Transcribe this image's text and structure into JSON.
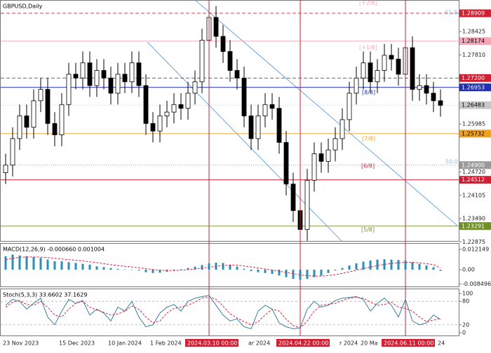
{
  "chart_data": [
    {
      "type": "candlestick",
      "title": "GBPUSD,Daily",
      "categories": [
        "23 Nov 2023",
        null,
        null,
        null,
        null,
        null,
        null,
        null,
        "15 Dec 2023",
        null,
        null,
        null,
        null,
        null,
        null,
        "10 Jan 2024",
        null,
        null,
        null,
        null,
        null,
        "1 Feb 2024",
        null,
        null,
        null,
        null,
        null,
        null,
        null,
        "2024.03.10 00:00",
        null,
        null,
        null,
        null,
        null,
        "ar 2024",
        null,
        null,
        null,
        null,
        null,
        null,
        "2024.04.22 00:00",
        null,
        null,
        null,
        null,
        null,
        "r 2024",
        null,
        null,
        "20 Ma",
        null,
        null,
        null,
        null,
        null,
        "2024.06.11 00:00",
        null,
        null,
        null,
        null,
        "24"
      ],
      "open": [
        1.247,
        1.249,
        1.256,
        1.262,
        1.259,
        1.266,
        1.269,
        1.26,
        1.257,
        1.265,
        1.273,
        1.272,
        1.276,
        1.27,
        1.274,
        1.272,
        1.268,
        1.273,
        1.271,
        1.276,
        1.27,
        1.26,
        1.258,
        1.262,
        1.263,
        1.265,
        1.264,
        1.268,
        1.271,
        1.282,
        1.288,
        1.283,
        1.279,
        1.274,
        1.272,
        1.262,
        1.256,
        1.262,
        1.265,
        1.264,
        1.255,
        1.244,
        1.237,
        1.232,
        1.245,
        1.252,
        1.25,
        1.253,
        1.256,
        1.261,
        1.268,
        1.272,
        1.276,
        1.271,
        1.274,
        1.278,
        1.277,
        1.273,
        1.28,
        1.269,
        1.27,
        1.268,
        1.266
      ],
      "high": [
        1.252,
        1.259,
        1.265,
        1.265,
        1.269,
        1.272,
        1.272,
        1.263,
        1.268,
        1.276,
        1.276,
        1.279,
        1.279,
        1.277,
        1.277,
        1.275,
        1.276,
        1.276,
        1.279,
        1.279,
        1.273,
        1.263,
        1.265,
        1.266,
        1.268,
        1.268,
        1.271,
        1.274,
        1.285,
        1.291,
        1.291,
        1.286,
        1.282,
        1.277,
        1.275,
        1.265,
        1.265,
        1.268,
        1.268,
        1.267,
        1.258,
        1.247,
        1.24,
        1.248,
        1.255,
        1.255,
        1.256,
        1.259,
        1.264,
        1.271,
        1.275,
        1.279,
        1.279,
        1.277,
        1.281,
        1.281,
        1.28,
        1.283,
        1.283,
        1.273,
        1.273,
        1.271,
        1.269
      ],
      "low": [
        1.244,
        1.246,
        1.253,
        1.256,
        1.256,
        1.263,
        1.257,
        1.254,
        1.254,
        1.262,
        1.269,
        1.269,
        1.267,
        1.267,
        1.269,
        1.265,
        1.265,
        1.268,
        1.268,
        1.267,
        1.257,
        1.255,
        1.255,
        1.259,
        1.26,
        1.261,
        1.261,
        1.265,
        1.268,
        1.279,
        1.28,
        1.276,
        1.271,
        1.269,
        1.259,
        1.253,
        1.253,
        1.259,
        1.261,
        1.252,
        1.241,
        1.234,
        1.229,
        1.229,
        1.242,
        1.247,
        1.247,
        1.25,
        1.253,
        1.258,
        1.265,
        1.269,
        1.268,
        1.268,
        1.271,
        1.274,
        1.27,
        1.27,
        1.266,
        1.266,
        1.265,
        1.263,
        1.2618
      ],
      "close": [
        1.249,
        1.256,
        1.262,
        1.259,
        1.266,
        1.269,
        1.26,
        1.257,
        1.265,
        1.273,
        1.272,
        1.276,
        1.27,
        1.274,
        1.272,
        1.268,
        1.273,
        1.271,
        1.276,
        1.27,
        1.26,
        1.258,
        1.262,
        1.263,
        1.265,
        1.264,
        1.268,
        1.271,
        1.282,
        1.288,
        1.283,
        1.279,
        1.274,
        1.272,
        1.262,
        1.256,
        1.262,
        1.265,
        1.264,
        1.255,
        1.244,
        1.237,
        1.232,
        1.245,
        1.252,
        1.25,
        1.253,
        1.256,
        1.261,
        1.268,
        1.272,
        1.276,
        1.271,
        1.274,
        1.278,
        1.277,
        1.273,
        1.28,
        1.269,
        1.27,
        1.268,
        1.266,
        1.2648
      ],
      "up_color": "#ffffff",
      "down_color": "#000000",
      "ylim": [
        1.2288,
        1.2926
      ],
      "yticks": [
        1.28425,
        {
          "value": 1.2781,
          "label": "1.27810"
        },
        1.25985,
        {
          "value": 1.2472,
          "label": "1.24720"
        },
        1.24105,
        {
          "value": 1.2349,
          "label": "1.23490"
        },
        1.22875
      ],
      "levels": [
        {
          "value": 1.28909,
          "label": "1.28909",
          "color": "#d21e32",
          "style": "dashed"
        },
        {
          "value": 1.28174,
          "label": "1.28174",
          "color": "#f4a6b6",
          "style": "solid"
        },
        {
          "value": 1.272,
          "label": "1.27200",
          "color": "#d21e32",
          "style": "dashed"
        },
        {
          "value": 1.26953,
          "label": "1.26953",
          "color": "#1f2fb0",
          "style": "solid"
        },
        {
          "value": 1.26483,
          "label": "1.26483",
          "color": "#c8c8c8",
          "style": "dotted"
        },
        {
          "value": 1.25732,
          "label": "1.25732",
          "color": "#f0a020",
          "style": "solid"
        },
        {
          "value": 1.249,
          "label": "1.24900",
          "color": "#9a9a9a",
          "style": "dotted"
        },
        {
          "value": 1.24512,
          "label": "1.24512",
          "color": "#d21e32",
          "style": "solid"
        },
        {
          "value": 1.23291,
          "label": "1.23291",
          "color": "#6f8f20",
          "style": "solid"
        }
      ],
      "annotations": [
        "[+2/8]",
        "61.8",
        "[+1/8]",
        "[8/8]",
        "[7/8]",
        "50.0",
        "[6/8]",
        "[5/8]"
      ]
    },
    {
      "type": "macd",
      "title": "MACD(12,26,9) -0.000660 0.001004",
      "histogram": {
        "color": "#2a8fb8",
        "values": [
          0.008,
          0.009,
          0.0085,
          0.008,
          0.0075,
          0.007,
          0.006,
          0.005,
          0.005,
          0.0045,
          0.004,
          0.0035,
          0.003,
          0.002,
          0.0015,
          0.001,
          0.0005,
          0.0002,
          0.0001,
          -0.0005,
          -0.0015,
          -0.002,
          -0.0018,
          -0.0012,
          -0.0005,
          0.0003,
          0.001,
          0.0018,
          0.0028,
          0.0038,
          0.0042,
          0.004,
          0.003,
          0.0018,
          0.0005,
          -0.0008,
          -0.0015,
          -0.002,
          -0.0025,
          -0.0035,
          -0.0045,
          -0.0055,
          -0.006,
          -0.0055,
          -0.0045,
          -0.0035,
          -0.002,
          -0.0005,
          0.001,
          0.0025,
          0.0038,
          0.0048,
          0.0055,
          0.006,
          0.0062,
          0.006,
          0.0058,
          0.0055,
          0.0045,
          0.0035,
          0.0025,
          0.0015,
          -0.00066
        ]
      },
      "signal": {
        "color": "#e0203a",
        "values": [
          0.006,
          0.0068,
          0.0074,
          0.0076,
          0.0076,
          0.0075,
          0.0072,
          0.0068,
          0.0064,
          0.006,
          0.0056,
          0.0052,
          0.0047,
          0.0042,
          0.0036,
          0.003,
          0.0025,
          0.002,
          0.0016,
          0.0012,
          0.0006,
          0.0001,
          -0.0003,
          -0.0005,
          -0.0005,
          -0.0003,
          0,
          0.0004,
          0.0009,
          0.0015,
          0.0021,
          0.0025,
          0.0027,
          0.0026,
          0.0022,
          0.0016,
          0.001,
          0.0004,
          -0.0002,
          -0.0009,
          -0.0016,
          -0.0024,
          -0.0031,
          -0.0036,
          -0.0038,
          -0.0038,
          -0.0035,
          -0.003,
          -0.0022,
          -0.0013,
          -0.0003,
          0.0007,
          0.0016,
          0.0024,
          0.0032,
          0.0037,
          0.0041,
          0.0043,
          0.0043,
          0.0041,
          0.0036,
          0.003,
          0.001004
        ]
      },
      "ylim": [
        -0.0096,
        0.0159
      ],
      "yticks": [
        0.012149,
        {
          "value": 0,
          "label": "0.00"
        },
        -0.008496
      ]
    },
    {
      "type": "stochastic",
      "title": "Stoch(5,3,3) 33.6602 37.1629",
      "k": {
        "color": "#3a7fa0",
        "values": [
          70,
          85,
          80,
          60,
          75,
          88,
          40,
          20,
          55,
          85,
          75,
          82,
          45,
          60,
          50,
          30,
          65,
          55,
          80,
          40,
          15,
          20,
          50,
          65,
          72,
          55,
          80,
          88,
          92,
          95,
          70,
          45,
          30,
          35,
          15,
          10,
          55,
          70,
          60,
          25,
          15,
          10,
          12,
          60,
          80,
          65,
          70,
          82,
          88,
          90,
          92,
          85,
          55,
          75,
          88,
          70,
          40,
          85,
          30,
          20,
          25,
          45,
          33.6602
        ]
      },
      "d": {
        "color": "#e0203a",
        "values": [
          65,
          78,
          82,
          72,
          70,
          80,
          65,
          45,
          40,
          60,
          75,
          80,
          65,
          58,
          52,
          45,
          48,
          55,
          68,
          60,
          40,
          25,
          30,
          50,
          62,
          65,
          70,
          78,
          88,
          92,
          85,
          68,
          48,
          38,
          28,
          20,
          28,
          45,
          60,
          55,
          35,
          18,
          12,
          30,
          55,
          70,
          72,
          75,
          82,
          88,
          90,
          88,
          78,
          70,
          72,
          78,
          65,
          62,
          55,
          40,
          28,
          32,
          37.1629
        ]
      },
      "ylim": [
        0,
        100
      ],
      "yticks": [
        100,
        80,
        20,
        0
      ]
    }
  ]
}
